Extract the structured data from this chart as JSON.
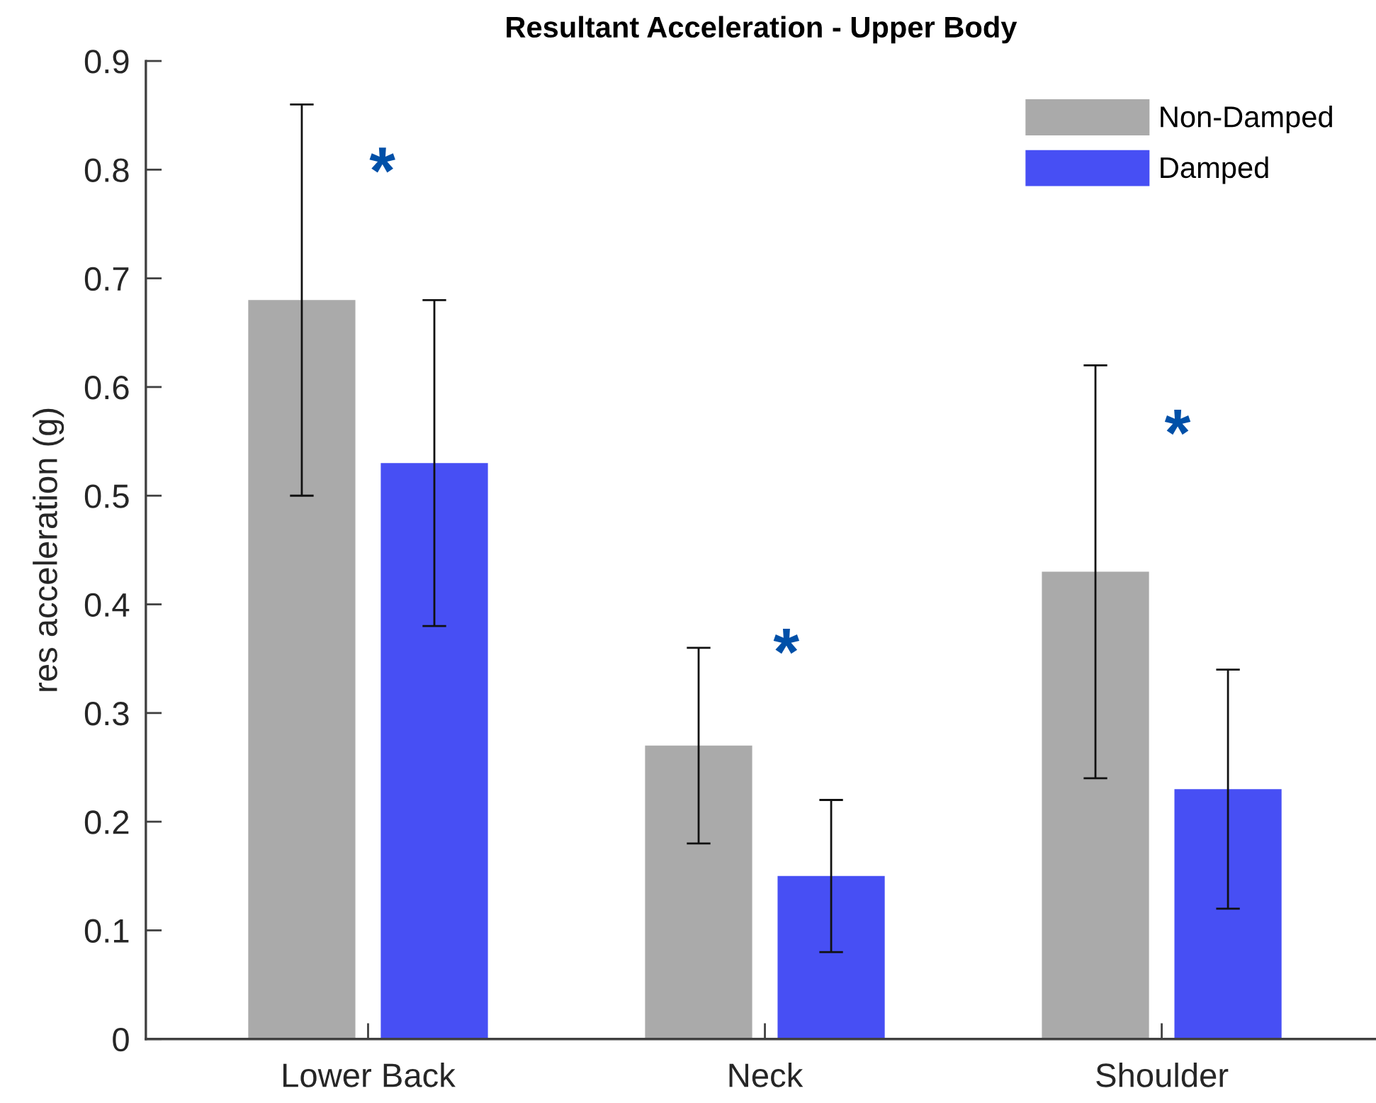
{
  "chart_data": {
    "type": "bar",
    "title": "Resultant Acceleration - Upper Body",
    "ylabel": "res acceleration (g)",
    "categories": [
      "Lower Back",
      "Neck",
      "Shoulder"
    ],
    "series": [
      {
        "name": "Non-Damped",
        "color": "#aaaaaa",
        "values": [
          0.68,
          0.27,
          0.43
        ],
        "errors": [
          0.18,
          0.09,
          0.19
        ]
      },
      {
        "name": "Damped",
        "color": "#474ff4",
        "values": [
          0.53,
          0.15,
          0.23
        ],
        "errors": [
          0.15,
          0.07,
          0.11
        ]
      }
    ],
    "ylim": [
      0,
      0.9
    ],
    "yticks": [
      0,
      0.1,
      0.2,
      0.3,
      0.4,
      0.5,
      0.6,
      0.7,
      0.8,
      0.9
    ],
    "annotations": [
      "*",
      "*",
      "*"
    ],
    "grid": false,
    "legend": "top right"
  }
}
